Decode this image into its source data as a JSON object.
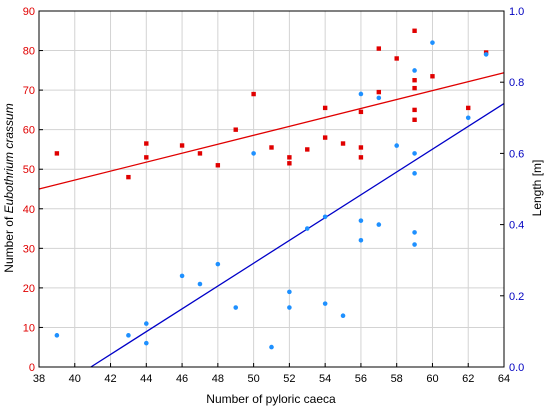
{
  "chart_data": {
    "type": "scatter",
    "x_axis": {
      "label": "Number of pyloric caeca",
      "range": [
        38,
        64
      ],
      "ticks": [
        38,
        40,
        42,
        44,
        46,
        48,
        50,
        52,
        54,
        56,
        58,
        60,
        62,
        64
      ]
    },
    "y_left_axis": {
      "label_prefix": "Number of ",
      "label_italic": "Eubothrium crassum",
      "range": [
        0,
        90
      ],
      "ticks": [
        0,
        10,
        20,
        30,
        40,
        50,
        60,
        70,
        80,
        90
      ],
      "color": "#e00000"
    },
    "y_right_axis": {
      "label": "Length [m]",
      "range": [
        0,
        1
      ],
      "ticks": [
        "0.0",
        "0.2",
        "0.4",
        "0.6",
        "0.8",
        "1.0"
      ],
      "color": "#0000c0"
    },
    "grid": true,
    "series": [
      {
        "axis": "left",
        "marker": "square",
        "color": "#e00000",
        "points": [
          [
            39,
            54
          ],
          [
            43,
            48
          ],
          [
            44,
            56.5
          ],
          [
            44,
            53
          ],
          [
            46,
            56
          ],
          [
            47,
            54
          ],
          [
            48,
            51
          ],
          [
            49,
            60
          ],
          [
            50,
            69
          ],
          [
            51,
            55.5
          ],
          [
            52,
            53
          ],
          [
            52,
            51.5
          ],
          [
            53,
            55
          ],
          [
            54,
            65.5
          ],
          [
            54,
            58
          ],
          [
            55,
            56.5
          ],
          [
            56,
            64.5
          ],
          [
            56,
            55.5
          ],
          [
            56,
            53
          ],
          [
            57,
            69.5
          ],
          [
            57,
            80.5
          ],
          [
            58,
            78
          ],
          [
            59,
            85
          ],
          [
            59,
            72.5
          ],
          [
            59,
            70.5
          ],
          [
            59,
            65
          ],
          [
            59,
            62.5
          ],
          [
            60,
            73.5
          ],
          [
            62,
            65.5
          ],
          [
            63,
            79.5
          ]
        ],
        "trend": {
          "x": [
            38,
            64
          ],
          "y": [
            45,
            74.4
          ]
        }
      },
      {
        "axis": "right",
        "marker": "circle",
        "color": "#1e90ff",
        "line_color": "#0000c8",
        "points": [
          [
            39,
            0.089
          ],
          [
            43,
            0.089
          ],
          [
            44,
            0.122
          ],
          [
            44,
            0.067
          ],
          [
            46,
            0.256
          ],
          [
            47,
            0.233
          ],
          [
            48,
            0.289
          ],
          [
            49,
            0.167
          ],
          [
            50,
            0.6
          ],
          [
            51,
            0.056
          ],
          [
            52,
            0.211
          ],
          [
            52,
            0.167
          ],
          [
            53,
            0.389
          ],
          [
            54,
            0.422
          ],
          [
            54,
            0.178
          ],
          [
            55,
            0.144
          ],
          [
            56,
            0.767
          ],
          [
            56,
            0.411
          ],
          [
            56,
            0.356
          ],
          [
            57,
            0.756
          ],
          [
            57,
            0.4
          ],
          [
            58,
            0.622
          ],
          [
            59,
            0.833
          ],
          [
            59,
            0.6
          ],
          [
            59,
            0.544
          ],
          [
            59,
            0.378
          ],
          [
            59,
            0.344
          ],
          [
            60,
            0.911
          ],
          [
            62,
            0.7
          ],
          [
            63,
            0.878
          ]
        ],
        "trend": {
          "x": [
            40.9,
            64
          ],
          "y": [
            0,
            0.74
          ]
        }
      }
    ]
  }
}
